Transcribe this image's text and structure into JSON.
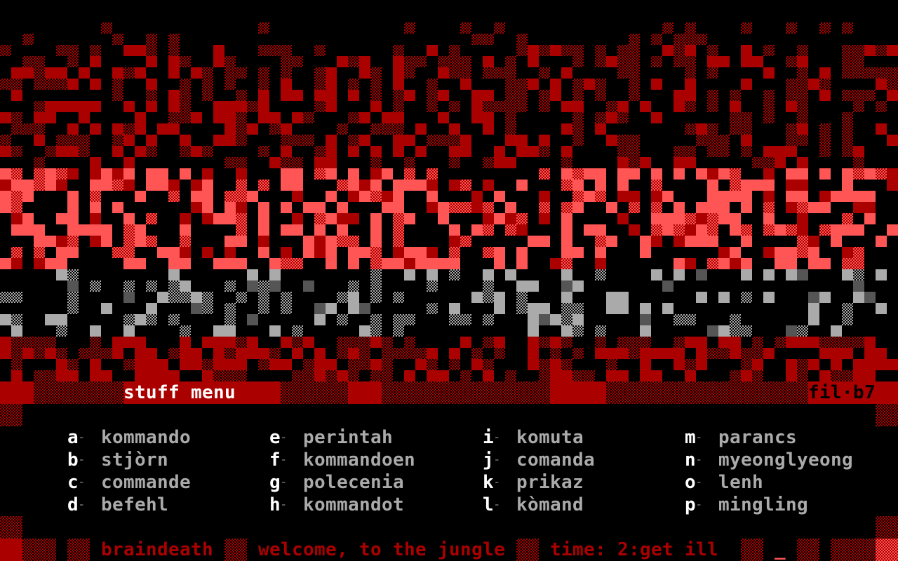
{
  "logo": {
    "text": "BRAINDEATH",
    "colors": [
      "#aa0000",
      "#ff5555",
      "#aaaaaa",
      "#555555"
    ]
  },
  "header": {
    "title": "stuff menu",
    "tag": "fil·b7"
  },
  "menu": {
    "columns": [
      [
        {
          "key": "a",
          "label": "kommando"
        },
        {
          "key": "b",
          "label": "stjòrn"
        },
        {
          "key": "c",
          "label": "commande"
        },
        {
          "key": "d",
          "label": "befehl"
        }
      ],
      [
        {
          "key": "e",
          "label": "perintah"
        },
        {
          "key": "f",
          "label": "kommandoen"
        },
        {
          "key": "g",
          "label": "polecenia"
        },
        {
          "key": "h",
          "label": "kommandot"
        }
      ],
      [
        {
          "key": "i",
          "label": "komuta"
        },
        {
          "key": "j",
          "label": "comanda"
        },
        {
          "key": "k",
          "label": "prikaz"
        },
        {
          "key": "l",
          "label": "kòmand"
        }
      ],
      [
        {
          "key": "m",
          "label": "parancs"
        },
        {
          "key": "n",
          "label": "myeonglyeong"
        },
        {
          "key": "o",
          "label": "lenh"
        },
        {
          "key": "p",
          "label": "mingling"
        }
      ]
    ],
    "separator": "-"
  },
  "status": {
    "board": "braindeath",
    "message": "welcome, to the jungle",
    "time": "time: 2:get ill",
    "cursor": "_"
  },
  "colors": {
    "red": "#aa0000",
    "light_red": "#ff5555",
    "gray": "#aaaaaa",
    "white": "#ffffff"
  }
}
